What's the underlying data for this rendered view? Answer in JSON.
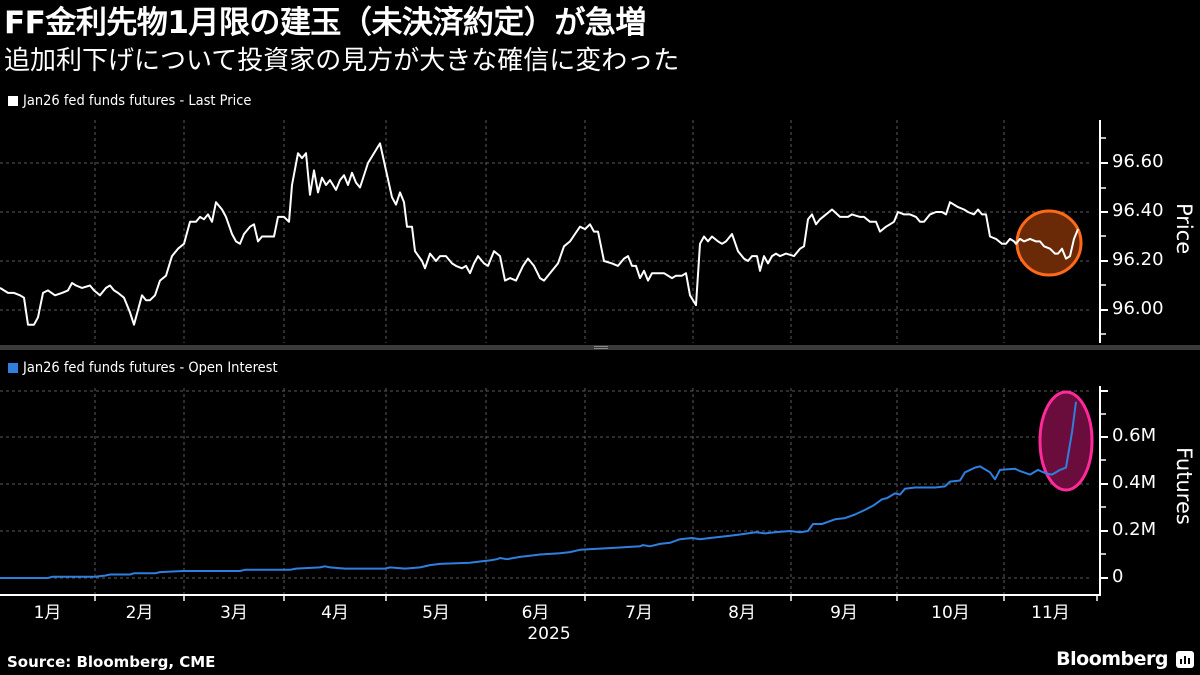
{
  "header": {
    "title": "FF金利先物1月限の建玉（未決済約定）が急増",
    "subtitle": "追加利下げについて投資家の見方が大きな確信に変わった"
  },
  "colors": {
    "background": "#000000",
    "price_line": "#ffffff",
    "oi_line": "#2f7fe0",
    "price_highlight_fill": "#6a2a08",
    "price_highlight_stroke": "#ff6a1a",
    "oi_highlight_fill": "#6a0c3c",
    "oi_highlight_stroke": "#ff2a9a",
    "grid": "#666666"
  },
  "footer": {
    "source": "Source: Bloomberg, CME",
    "brand": "Bloomberg"
  },
  "chart_data": [
    {
      "type": "line",
      "title": "Jan26 fed funds futures - Last Price",
      "legend": [
        "Jan26 fed funds futures - Last Price"
      ],
      "ylabel": "Price",
      "xlabel": "2025",
      "ylim": [
        95.86,
        96.76
      ],
      "yticks": [
        "96.00",
        "96.20",
        "96.40",
        "96.60"
      ],
      "x_ticks": [
        "1月",
        "2月",
        "3月",
        "4月",
        "5月",
        "6月",
        "7月",
        "8月",
        "9月",
        "10月",
        "11月"
      ],
      "grid": true,
      "annotation": "orange circle highlighting November price dip",
      "points": [
        [
          0,
          96.09
        ],
        [
          8,
          96.07
        ],
        [
          14,
          96.07
        ],
        [
          20,
          96.06
        ],
        [
          24,
          96.05
        ],
        [
          28,
          95.94
        ],
        [
          34,
          95.94
        ],
        [
          38,
          95.97
        ],
        [
          43,
          96.07
        ],
        [
          48,
          96.08
        ],
        [
          55,
          96.06
        ],
        [
          62,
          96.07
        ],
        [
          68,
          96.08
        ],
        [
          72,
          96.11
        ],
        [
          76,
          96.1
        ],
        [
          82,
          96.09
        ],
        [
          90,
          96.1
        ],
        [
          94,
          96.08
        ],
        [
          100,
          96.06
        ],
        [
          106,
          96.09
        ],
        [
          110,
          96.1
        ],
        [
          114,
          96.08
        ],
        [
          118,
          96.07
        ],
        [
          124,
          96.05
        ],
        [
          130,
          95.99
        ],
        [
          134,
          95.94
        ],
        [
          138,
          96.0
        ],
        [
          142,
          96.06
        ],
        [
          146,
          96.04
        ],
        [
          150,
          96.04
        ],
        [
          155,
          96.06
        ],
        [
          160,
          96.12
        ],
        [
          166,
          96.14
        ],
        [
          172,
          96.22
        ],
        [
          178,
          96.25
        ],
        [
          184,
          96.27
        ],
        [
          190,
          96.36
        ],
        [
          196,
          96.36
        ],
        [
          200,
          96.38
        ],
        [
          204,
          96.37
        ],
        [
          208,
          96.39
        ],
        [
          212,
          96.36
        ],
        [
          216,
          96.44
        ],
        [
          222,
          96.41
        ],
        [
          226,
          96.38
        ],
        [
          232,
          96.31
        ],
        [
          236,
          96.28
        ],
        [
          240,
          96.27
        ],
        [
          244,
          96.31
        ],
        [
          250,
          96.34
        ],
        [
          254,
          96.35
        ],
        [
          258,
          96.28
        ],
        [
          262,
          96.3
        ],
        [
          266,
          96.3
        ],
        [
          274,
          96.3
        ],
        [
          278,
          96.38
        ],
        [
          284,
          96.38
        ],
        [
          289,
          96.36
        ],
        [
          292,
          96.51
        ],
        [
          298,
          96.64
        ],
        [
          302,
          96.62
        ],
        [
          306,
          96.64
        ],
        [
          310,
          96.47
        ],
        [
          314,
          96.57
        ],
        [
          318,
          96.48
        ],
        [
          322,
          96.54
        ],
        [
          326,
          96.51
        ],
        [
          330,
          96.53
        ],
        [
          336,
          96.49
        ],
        [
          340,
          96.53
        ],
        [
          344,
          96.55
        ],
        [
          348,
          96.51
        ],
        [
          352,
          96.56
        ],
        [
          356,
          96.52
        ],
        [
          360,
          96.5
        ],
        [
          368,
          96.6
        ],
        [
          380,
          96.68
        ],
        [
          392,
          96.46
        ],
        [
          396,
          96.43
        ],
        [
          400,
          96.48
        ],
        [
          404,
          96.44
        ],
        [
          407,
          96.34
        ],
        [
          412,
          96.34
        ],
        [
          415,
          96.24
        ],
        [
          422,
          96.2
        ],
        [
          425,
          96.17
        ],
        [
          430,
          96.23
        ],
        [
          436,
          96.2
        ],
        [
          440,
          96.22
        ],
        [
          446,
          96.22
        ],
        [
          452,
          96.19
        ],
        [
          456,
          96.18
        ],
        [
          462,
          96.17
        ],
        [
          466,
          96.18
        ],
        [
          470,
          96.15
        ],
        [
          474,
          96.19
        ],
        [
          478,
          96.22
        ],
        [
          484,
          96.19
        ],
        [
          488,
          96.18
        ],
        [
          494,
          96.24
        ],
        [
          500,
          96.22
        ],
        [
          505,
          96.12
        ],
        [
          510,
          96.13
        ],
        [
          516,
          96.12
        ],
        [
          523,
          96.18
        ],
        [
          528,
          96.21
        ],
        [
          534,
          96.18
        ],
        [
          540,
          96.13
        ],
        [
          544,
          96.12
        ],
        [
          550,
          96.15
        ],
        [
          558,
          96.19
        ],
        [
          564,
          96.26
        ],
        [
          570,
          96.28
        ],
        [
          575,
          96.31
        ],
        [
          580,
          96.34
        ],
        [
          585,
          96.33
        ],
        [
          590,
          96.35
        ],
        [
          594,
          96.32
        ],
        [
          598,
          96.32
        ],
        [
          604,
          96.2
        ],
        [
          612,
          96.19
        ],
        [
          618,
          96.18
        ],
        [
          624,
          96.21
        ],
        [
          628,
          96.22
        ],
        [
          632,
          96.18
        ],
        [
          636,
          96.18
        ],
        [
          640,
          96.13
        ],
        [
          644,
          96.16
        ],
        [
          648,
          96.12
        ],
        [
          652,
          96.15
        ],
        [
          660,
          96.15
        ],
        [
          664,
          96.15
        ],
        [
          672,
          96.13
        ],
        [
          676,
          96.14
        ],
        [
          682,
          96.14
        ],
        [
          686,
          96.15
        ],
        [
          690,
          96.06
        ],
        [
          696,
          96.02
        ],
        [
          700,
          96.27
        ],
        [
          704,
          96.3
        ],
        [
          708,
          96.28
        ],
        [
          712,
          96.3
        ],
        [
          718,
          96.28
        ],
        [
          722,
          96.27
        ],
        [
          726,
          96.28
        ],
        [
          732,
          96.31
        ],
        [
          738,
          96.24
        ],
        [
          744,
          96.21
        ],
        [
          748,
          96.2
        ],
        [
          752,
          96.22
        ],
        [
          757,
          96.22
        ],
        [
          760,
          96.16
        ],
        [
          764,
          96.22
        ],
        [
          768,
          96.19
        ],
        [
          772,
          96.22
        ],
        [
          776,
          96.23
        ],
        [
          780,
          96.22
        ],
        [
          786,
          96.23
        ],
        [
          794,
          96.22
        ],
        [
          800,
          96.25
        ],
        [
          804,
          96.26
        ],
        [
          808,
          96.37
        ],
        [
          812,
          96.39
        ],
        [
          816,
          96.35
        ],
        [
          820,
          96.37
        ],
        [
          832,
          96.41
        ],
        [
          840,
          96.38
        ],
        [
          848,
          96.38
        ],
        [
          852,
          96.39
        ],
        [
          860,
          96.38
        ],
        [
          864,
          96.38
        ],
        [
          870,
          96.36
        ],
        [
          876,
          96.36
        ],
        [
          880,
          96.32
        ],
        [
          886,
          96.34
        ],
        [
          890,
          96.35
        ],
        [
          894,
          96.36
        ],
        [
          898,
          96.4
        ],
        [
          904,
          96.39
        ],
        [
          910,
          96.39
        ],
        [
          916,
          96.38
        ],
        [
          920,
          96.36
        ],
        [
          924,
          96.36
        ],
        [
          930,
          96.39
        ],
        [
          936,
          96.4
        ],
        [
          942,
          96.4
        ],
        [
          946,
          96.39
        ],
        [
          950,
          96.44
        ],
        [
          958,
          96.42
        ],
        [
          964,
          96.41
        ],
        [
          968,
          96.4
        ],
        [
          974,
          96.39
        ],
        [
          978,
          96.41
        ],
        [
          982,
          96.39
        ],
        [
          986,
          96.39
        ],
        [
          990,
          96.3
        ],
        [
          996,
          96.29
        ],
        [
          1002,
          96.27
        ],
        [
          1006,
          96.27
        ],
        [
          1010,
          96.29
        ],
        [
          1014,
          96.28
        ],
        [
          1016,
          96.27
        ],
        [
          1020,
          96.29
        ],
        [
          1024,
          96.28
        ],
        [
          1030,
          96.29
        ],
        [
          1036,
          96.28
        ],
        [
          1040,
          96.28
        ],
        [
          1044,
          96.26
        ],
        [
          1050,
          96.25
        ],
        [
          1055,
          96.23
        ],
        [
          1058,
          96.23
        ],
        [
          1062,
          96.25
        ],
        [
          1066,
          96.21
        ],
        [
          1070,
          96.22
        ],
        [
          1074,
          96.29
        ],
        [
          1078,
          96.33
        ]
      ]
    },
    {
      "type": "line",
      "title": "Jan26 fed funds futures - Open Interest",
      "legend": [
        "Jan26 fed funds futures - Open Interest"
      ],
      "ylabel": "Futures",
      "xlabel": "2025",
      "ylim": [
        -0.03,
        0.84
      ],
      "yticks": [
        "0",
        "0.2M",
        "0.4M",
        "0.6M"
      ],
      "units": "million contracts",
      "x_ticks": [
        "1月",
        "2月",
        "3月",
        "4月",
        "5月",
        "6月",
        "7月",
        "8月",
        "9月",
        "10月",
        "11月"
      ],
      "grid": true,
      "annotation": "pink ellipse highlighting sharp November surge in open interest",
      "points": [
        [
          0,
          0.0
        ],
        [
          48,
          0.0
        ],
        [
          52,
          0.005
        ],
        [
          95,
          0.005
        ],
        [
          105,
          0.01
        ],
        [
          110,
          0.015
        ],
        [
          130,
          0.015
        ],
        [
          134,
          0.02
        ],
        [
          155,
          0.02
        ],
        [
          160,
          0.025
        ],
        [
          183,
          0.03
        ],
        [
          240,
          0.03
        ],
        [
          245,
          0.035
        ],
        [
          290,
          0.035
        ],
        [
          296,
          0.04
        ],
        [
          320,
          0.045
        ],
        [
          325,
          0.05
        ],
        [
          330,
          0.045
        ],
        [
          345,
          0.04
        ],
        [
          385,
          0.04
        ],
        [
          390,
          0.045
        ],
        [
          405,
          0.04
        ],
        [
          420,
          0.045
        ],
        [
          430,
          0.055
        ],
        [
          440,
          0.06
        ],
        [
          470,
          0.065
        ],
        [
          480,
          0.07
        ],
        [
          490,
          0.075
        ],
        [
          497,
          0.08
        ],
        [
          500,
          0.085
        ],
        [
          507,
          0.08
        ],
        [
          520,
          0.09
        ],
        [
          530,
          0.095
        ],
        [
          540,
          0.1
        ],
        [
          560,
          0.105
        ],
        [
          570,
          0.11
        ],
        [
          580,
          0.12
        ],
        [
          600,
          0.125
        ],
        [
          620,
          0.13
        ],
        [
          640,
          0.135
        ],
        [
          643,
          0.14
        ],
        [
          650,
          0.135
        ],
        [
          660,
          0.145
        ],
        [
          670,
          0.15
        ],
        [
          680,
          0.165
        ],
        [
          692,
          0.17
        ],
        [
          700,
          0.165
        ],
        [
          710,
          0.17
        ],
        [
          720,
          0.175
        ],
        [
          730,
          0.18
        ],
        [
          740,
          0.185
        ],
        [
          756,
          0.195
        ],
        [
          765,
          0.19
        ],
        [
          775,
          0.195
        ],
        [
          790,
          0.2
        ],
        [
          800,
          0.195
        ],
        [
          808,
          0.2
        ],
        [
          813,
          0.23
        ],
        [
          822,
          0.23
        ],
        [
          835,
          0.25
        ],
        [
          845,
          0.255
        ],
        [
          855,
          0.27
        ],
        [
          865,
          0.29
        ],
        [
          874,
          0.31
        ],
        [
          882,
          0.335
        ],
        [
          887,
          0.34
        ],
        [
          895,
          0.36
        ],
        [
          900,
          0.355
        ],
        [
          905,
          0.38
        ],
        [
          915,
          0.385
        ],
        [
          935,
          0.385
        ],
        [
          945,
          0.39
        ],
        [
          950,
          0.41
        ],
        [
          960,
          0.415
        ],
        [
          965,
          0.45
        ],
        [
          975,
          0.47
        ],
        [
          980,
          0.475
        ],
        [
          990,
          0.45
        ],
        [
          995,
          0.42
        ],
        [
          1000,
          0.46
        ],
        [
          1015,
          0.465
        ],
        [
          1020,
          0.455
        ],
        [
          1030,
          0.44
        ],
        [
          1038,
          0.46
        ],
        [
          1046,
          0.445
        ],
        [
          1052,
          0.44
        ],
        [
          1060,
          0.46
        ],
        [
          1066,
          0.47
        ],
        [
          1072,
          0.62
        ],
        [
          1076,
          0.75
        ]
      ]
    }
  ]
}
